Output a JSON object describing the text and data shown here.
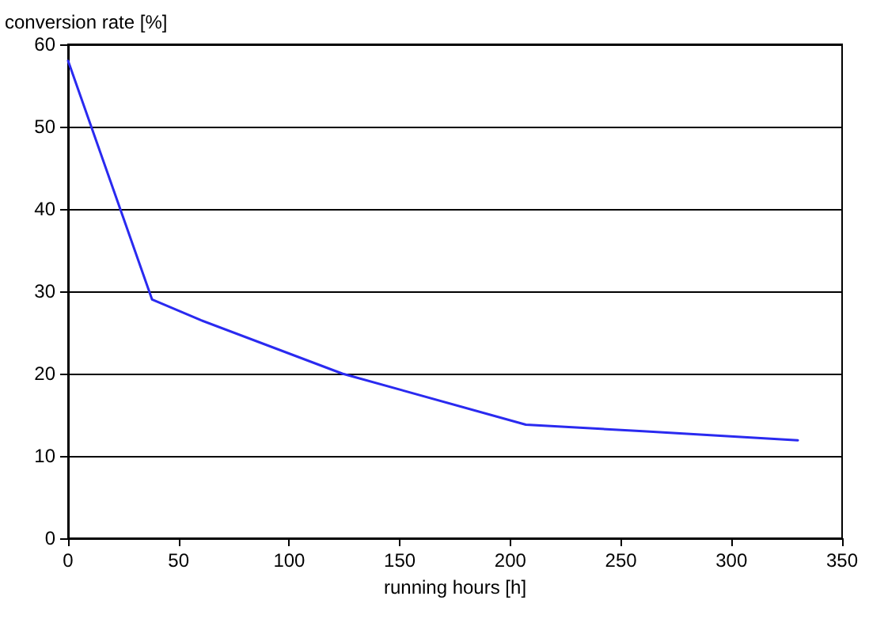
{
  "chart_data": {
    "type": "line",
    "ylabel": "conversion rate [%]",
    "xlabel": "running hours [h]",
    "x": [
      0,
      38,
      60,
      124,
      207,
      260,
      330
    ],
    "series": [
      {
        "color": "#2a2af0",
        "values": [
          58,
          29,
          26.5,
          20,
          13.8,
          13,
          11.9
        ]
      }
    ],
    "xlim": [
      0,
      350
    ],
    "xticks": [
      0,
      50,
      100,
      150,
      200,
      250,
      300,
      350
    ],
    "ylim": [
      0,
      60
    ],
    "yticks": [
      0,
      10,
      20,
      30,
      40,
      50,
      60
    ],
    "grid": "y",
    "marker": "none",
    "line_style": "solid"
  }
}
